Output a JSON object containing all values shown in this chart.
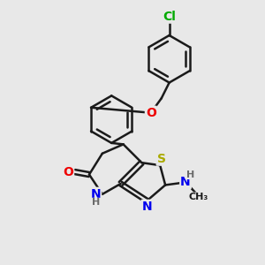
{
  "background_color": "#e8e8e8",
  "line_color": "#1a1a1a",
  "bond_width": 1.8,
  "atom_colors": {
    "S": "#aaaa00",
    "N": "#0000ee",
    "O": "#ee0000",
    "Cl": "#00aa00",
    "C": "#1a1a1a",
    "H": "#6a6a6a"
  },
  "font_size": 9
}
